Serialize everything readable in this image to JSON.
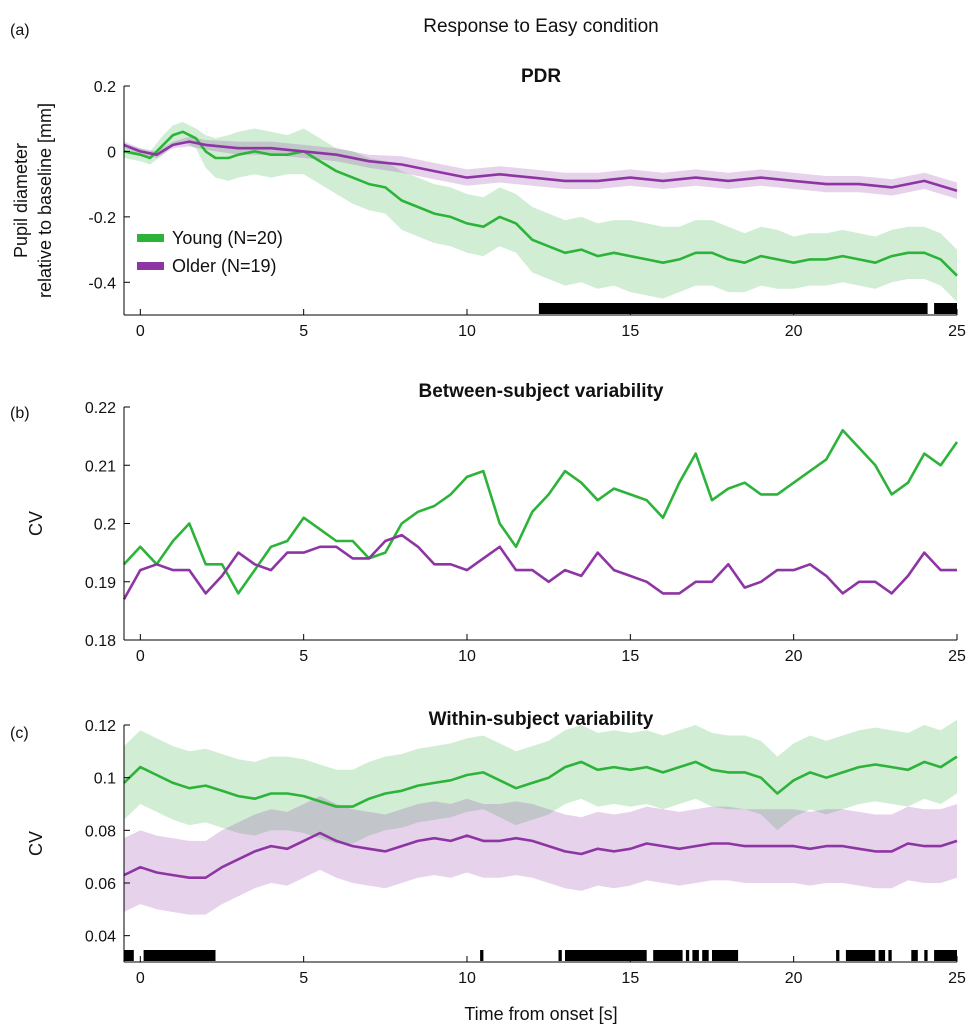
{
  "figure": {
    "suptitle": "Response to Easy condition",
    "xlabel": "Time from onset [s]"
  },
  "colors": {
    "young": "#2db33a",
    "older": "#8e35a4",
    "sig": "#000000"
  },
  "chart_data": [
    {
      "panel": "(a)",
      "type": "line",
      "title": "PDR",
      "ylabel": [
        "Pupil diameter",
        "relative to baseline [mm]"
      ],
      "xlim": [
        -0.5,
        25
      ],
      "ylim": [
        -0.5,
        0.2
      ],
      "xticks": [
        0,
        5,
        10,
        15,
        20,
        25
      ],
      "yticks": [
        -0.4,
        -0.2,
        0,
        0.2
      ],
      "ytick_labels": [
        "-0.4",
        "-0.2",
        "0",
        "0.2"
      ],
      "legend": {
        "position": "lower-left",
        "entries": [
          "Young (N=20)",
          "Older (N=19)"
        ]
      },
      "series": [
        {
          "name": "Young (N=20)",
          "color": "young",
          "x": [
            -0.5,
            0,
            0.3,
            0.7,
            1,
            1.3,
            1.7,
            2,
            2.3,
            2.7,
            3,
            3.5,
            4,
            4.5,
            5,
            5.5,
            6,
            6.5,
            7,
            7.5,
            8,
            8.5,
            9,
            9.5,
            10,
            10.5,
            11,
            11.5,
            12,
            12.5,
            13,
            13.5,
            14,
            14.5,
            15,
            15.5,
            16,
            16.5,
            17,
            17.5,
            18,
            18.5,
            19,
            19.5,
            20,
            20.5,
            21,
            21.5,
            22,
            22.5,
            23,
            23.5,
            24,
            24.5,
            25
          ],
          "y": [
            0,
            -0.01,
            -0.02,
            0.02,
            0.05,
            0.06,
            0.04,
            0.0,
            -0.02,
            -0.02,
            -0.01,
            0.0,
            -0.01,
            -0.01,
            0.0,
            -0.03,
            -0.06,
            -0.08,
            -0.1,
            -0.11,
            -0.15,
            -0.17,
            -0.19,
            -0.2,
            -0.22,
            -0.23,
            -0.2,
            -0.22,
            -0.27,
            -0.29,
            -0.31,
            -0.3,
            -0.32,
            -0.31,
            -0.32,
            -0.33,
            -0.34,
            -0.33,
            -0.31,
            -0.31,
            -0.33,
            -0.34,
            -0.32,
            -0.33,
            -0.34,
            -0.33,
            -0.33,
            -0.32,
            -0.33,
            -0.34,
            -0.32,
            -0.31,
            -0.31,
            -0.33,
            -0.38
          ],
          "band": [
            0.02,
            0.02,
            0.02,
            0.03,
            0.03,
            0.03,
            0.03,
            0.05,
            0.06,
            0.07,
            0.07,
            0.07,
            0.07,
            0.06,
            0.07,
            0.07,
            0.07,
            0.08,
            0.08,
            0.08,
            0.09,
            0.09,
            0.09,
            0.09,
            0.09,
            0.09,
            0.09,
            0.09,
            0.1,
            0.1,
            0.1,
            0.1,
            0.1,
            0.1,
            0.11,
            0.11,
            0.11,
            0.1,
            0.1,
            0.1,
            0.1,
            0.09,
            0.09,
            0.09,
            0.08,
            0.08,
            0.08,
            0.08,
            0.08,
            0.08,
            0.08,
            0.08,
            0.08,
            0.08,
            0.08
          ]
        },
        {
          "name": "Older (N=19)",
          "color": "older",
          "x": [
            -0.5,
            0,
            0.5,
            1,
            1.5,
            2,
            3,
            4,
            5,
            6,
            7,
            8,
            9,
            10,
            11,
            12,
            13,
            14,
            15,
            16,
            17,
            18,
            19,
            20,
            21,
            22,
            23,
            24,
            25
          ],
          "y": [
            0.02,
            0.0,
            -0.01,
            0.02,
            0.03,
            0.02,
            0.01,
            0.01,
            0.0,
            -0.01,
            -0.03,
            -0.04,
            -0.06,
            -0.08,
            -0.07,
            -0.08,
            -0.09,
            -0.09,
            -0.08,
            -0.09,
            -0.08,
            -0.09,
            -0.08,
            -0.09,
            -0.1,
            -0.1,
            -0.11,
            -0.09,
            -0.12
          ],
          "band": [
            0.01,
            0.01,
            0.01,
            0.01,
            0.015,
            0.015,
            0.02,
            0.02,
            0.02,
            0.02,
            0.02,
            0.025,
            0.025,
            0.025,
            0.025,
            0.025,
            0.025,
            0.025,
            0.025,
            0.025,
            0.025,
            0.025,
            0.025,
            0.025,
            0.025,
            0.025,
            0.025,
            0.025,
            0.025
          ]
        }
      ],
      "significance": [
        [
          12.2,
          24.1
        ],
        [
          24.3,
          25
        ]
      ]
    },
    {
      "panel": "(b)",
      "type": "line",
      "title": "Between-subject variability",
      "ylabel": [
        "CV"
      ],
      "xlim": [
        -0.5,
        25
      ],
      "ylim": [
        0.18,
        0.22
      ],
      "xticks": [
        0,
        5,
        10,
        15,
        20,
        25
      ],
      "yticks": [
        0.18,
        0.19,
        0.2,
        0.21,
        0.22
      ],
      "ytick_labels": [
        "0.18",
        "0.19",
        "0.2",
        "0.21",
        "0.22"
      ],
      "series": [
        {
          "name": "Young (N=20)",
          "color": "young",
          "x": [
            -0.5,
            0,
            0.5,
            1,
            1.5,
            2,
            2.5,
            3,
            3.5,
            4,
            4.5,
            5,
            5.5,
            6,
            6.5,
            7,
            7.5,
            8,
            8.5,
            9,
            9.5,
            10,
            10.5,
            11,
            11.5,
            12,
            12.5,
            13,
            13.5,
            14,
            14.5,
            15,
            15.5,
            16,
            16.5,
            17,
            17.5,
            18,
            18.5,
            19,
            19.5,
            20,
            20.5,
            21,
            21.5,
            22,
            22.5,
            23,
            23.5,
            24,
            24.5,
            25
          ],
          "y": [
            0.193,
            0.196,
            0.193,
            0.197,
            0.2,
            0.193,
            0.193,
            0.188,
            0.192,
            0.196,
            0.197,
            0.201,
            0.199,
            0.197,
            0.197,
            0.194,
            0.195,
            0.2,
            0.202,
            0.203,
            0.205,
            0.208,
            0.209,
            0.2,
            0.196,
            0.202,
            0.205,
            0.209,
            0.207,
            0.204,
            0.206,
            0.205,
            0.204,
            0.201,
            0.207,
            0.212,
            0.204,
            0.206,
            0.207,
            0.205,
            0.205,
            0.207,
            0.209,
            0.211,
            0.216,
            0.213,
            0.21,
            0.205,
            0.207,
            0.212,
            0.21,
            0.214
          ]
        },
        {
          "name": "Older (N=19)",
          "color": "older",
          "x": [
            -0.5,
            0,
            0.5,
            1,
            1.5,
            2,
            2.5,
            3,
            3.5,
            4,
            4.5,
            5,
            5.5,
            6,
            6.5,
            7,
            7.5,
            8,
            8.5,
            9,
            9.5,
            10,
            10.5,
            11,
            11.5,
            12,
            12.5,
            13,
            13.5,
            14,
            14.5,
            15,
            15.5,
            16,
            16.5,
            17,
            17.5,
            18,
            18.5,
            19,
            19.5,
            20,
            20.5,
            21,
            21.5,
            22,
            22.5,
            23,
            23.5,
            24,
            24.5,
            25
          ],
          "y": [
            0.187,
            0.192,
            0.193,
            0.192,
            0.192,
            0.188,
            0.191,
            0.195,
            0.193,
            0.192,
            0.195,
            0.195,
            0.196,
            0.196,
            0.194,
            0.194,
            0.197,
            0.198,
            0.196,
            0.193,
            0.193,
            0.192,
            0.194,
            0.196,
            0.192,
            0.192,
            0.19,
            0.192,
            0.191,
            0.195,
            0.192,
            0.191,
            0.19,
            0.188,
            0.188,
            0.19,
            0.19,
            0.193,
            0.189,
            0.19,
            0.192,
            0.192,
            0.193,
            0.191,
            0.188,
            0.19,
            0.19,
            0.188,
            0.191,
            0.195,
            0.192,
            0.192
          ]
        }
      ]
    },
    {
      "panel": "(c)",
      "type": "line",
      "title": "Within-subject variability",
      "ylabel": [
        "CV"
      ],
      "xlim": [
        -0.5,
        25
      ],
      "ylim": [
        0.03,
        0.12
      ],
      "xticks": [
        0,
        5,
        10,
        15,
        20,
        25
      ],
      "yticks": [
        0.04,
        0.06,
        0.08,
        0.1,
        0.12
      ],
      "ytick_labels": [
        "0.04",
        "0.06",
        "0.08",
        "0.1",
        "0.12"
      ],
      "series": [
        {
          "name": "Young (N=20)",
          "color": "young",
          "x": [
            -0.5,
            0,
            0.5,
            1,
            1.5,
            2,
            2.5,
            3,
            3.5,
            4,
            4.5,
            5,
            5.5,
            6,
            6.5,
            7,
            7.5,
            8,
            8.5,
            9,
            9.5,
            10,
            10.5,
            11,
            11.5,
            12,
            12.5,
            13,
            13.5,
            14,
            14.5,
            15,
            15.5,
            16,
            16.5,
            17,
            17.5,
            18,
            18.5,
            19,
            19.5,
            20,
            20.5,
            21,
            21.5,
            22,
            22.5,
            23,
            23.5,
            24,
            24.5,
            25
          ],
          "y": [
            0.098,
            0.104,
            0.101,
            0.098,
            0.096,
            0.097,
            0.095,
            0.093,
            0.092,
            0.094,
            0.094,
            0.093,
            0.091,
            0.089,
            0.089,
            0.092,
            0.094,
            0.095,
            0.097,
            0.098,
            0.099,
            0.101,
            0.102,
            0.099,
            0.096,
            0.098,
            0.1,
            0.104,
            0.106,
            0.103,
            0.104,
            0.103,
            0.104,
            0.102,
            0.104,
            0.106,
            0.103,
            0.102,
            0.102,
            0.1,
            0.094,
            0.099,
            0.102,
            0.1,
            0.102,
            0.104,
            0.105,
            0.104,
            0.103,
            0.106,
            0.104,
            0.108
          ],
          "band": 0.014
        },
        {
          "name": "Older (N=19)",
          "color": "older",
          "x": [
            -0.5,
            0,
            0.5,
            1,
            1.5,
            2,
            2.5,
            3,
            3.5,
            4,
            4.5,
            5,
            5.5,
            6,
            6.5,
            7,
            7.5,
            8,
            8.5,
            9,
            9.5,
            10,
            10.5,
            11,
            11.5,
            12,
            12.5,
            13,
            13.5,
            14,
            14.5,
            15,
            15.5,
            16,
            16.5,
            17,
            17.5,
            18,
            18.5,
            19,
            19.5,
            20,
            20.5,
            21,
            21.5,
            22,
            22.5,
            23,
            23.5,
            24,
            24.5,
            25
          ],
          "y": [
            0.063,
            0.066,
            0.064,
            0.063,
            0.062,
            0.062,
            0.066,
            0.069,
            0.072,
            0.074,
            0.073,
            0.076,
            0.079,
            0.076,
            0.074,
            0.073,
            0.072,
            0.074,
            0.076,
            0.077,
            0.076,
            0.078,
            0.076,
            0.076,
            0.077,
            0.076,
            0.074,
            0.072,
            0.071,
            0.073,
            0.072,
            0.073,
            0.075,
            0.074,
            0.073,
            0.074,
            0.075,
            0.075,
            0.074,
            0.074,
            0.074,
            0.074,
            0.073,
            0.074,
            0.074,
            0.073,
            0.072,
            0.072,
            0.075,
            0.074,
            0.074,
            0.076
          ],
          "band": 0.014
        }
      ],
      "significance": [
        [
          -0.5,
          -0.2
        ],
        [
          0.1,
          2.3
        ],
        [
          10.4,
          10.5
        ],
        [
          12.8,
          12.9
        ],
        [
          13,
          15.5
        ],
        [
          15.7,
          16.6
        ],
        [
          16.7,
          16.8
        ],
        [
          16.9,
          17.1
        ],
        [
          17.2,
          17.4
        ],
        [
          17.5,
          18.3
        ],
        [
          21.3,
          21.4
        ],
        [
          21.6,
          22.5
        ],
        [
          22.6,
          22.8
        ],
        [
          22.9,
          23
        ],
        [
          23.6,
          23.8
        ],
        [
          24,
          24.1
        ],
        [
          24.3,
          25
        ]
      ]
    }
  ]
}
